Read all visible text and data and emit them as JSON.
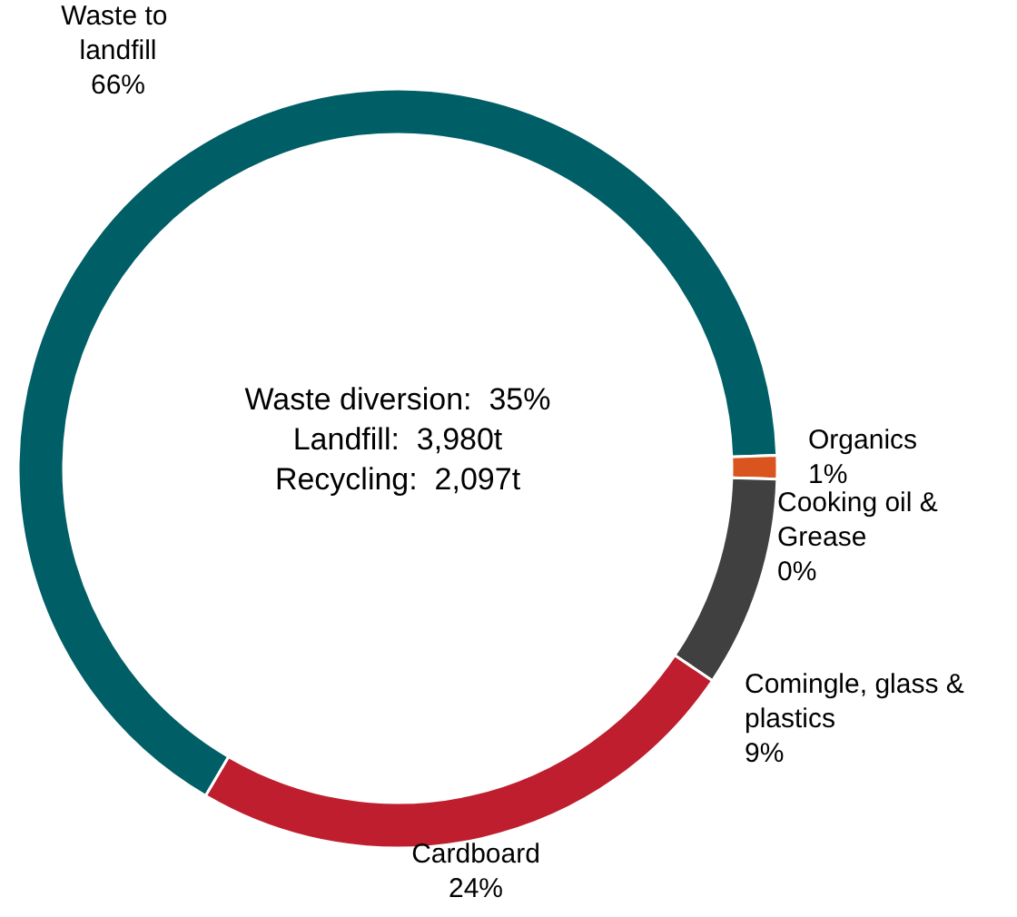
{
  "chart_data": {
    "type": "donut",
    "categories": [
      "Waste to landfill",
      "Organics",
      "Cooking oil & Grease",
      "Comingle, glass & plastics",
      "Cardboard"
    ],
    "values": [
      66,
      1,
      0,
      9,
      24
    ],
    "value_labels": [
      "66%",
      "1%",
      "0%",
      "9%",
      "24%"
    ],
    "colors": [
      "#005f66",
      "#d9541e",
      "#f2a900",
      "#404040",
      "#be1e2d"
    ],
    "annotations": [
      "Waste diversion:  35%",
      "Landfill:  3,980t",
      "Recycling:  2,097t"
    ]
  }
}
